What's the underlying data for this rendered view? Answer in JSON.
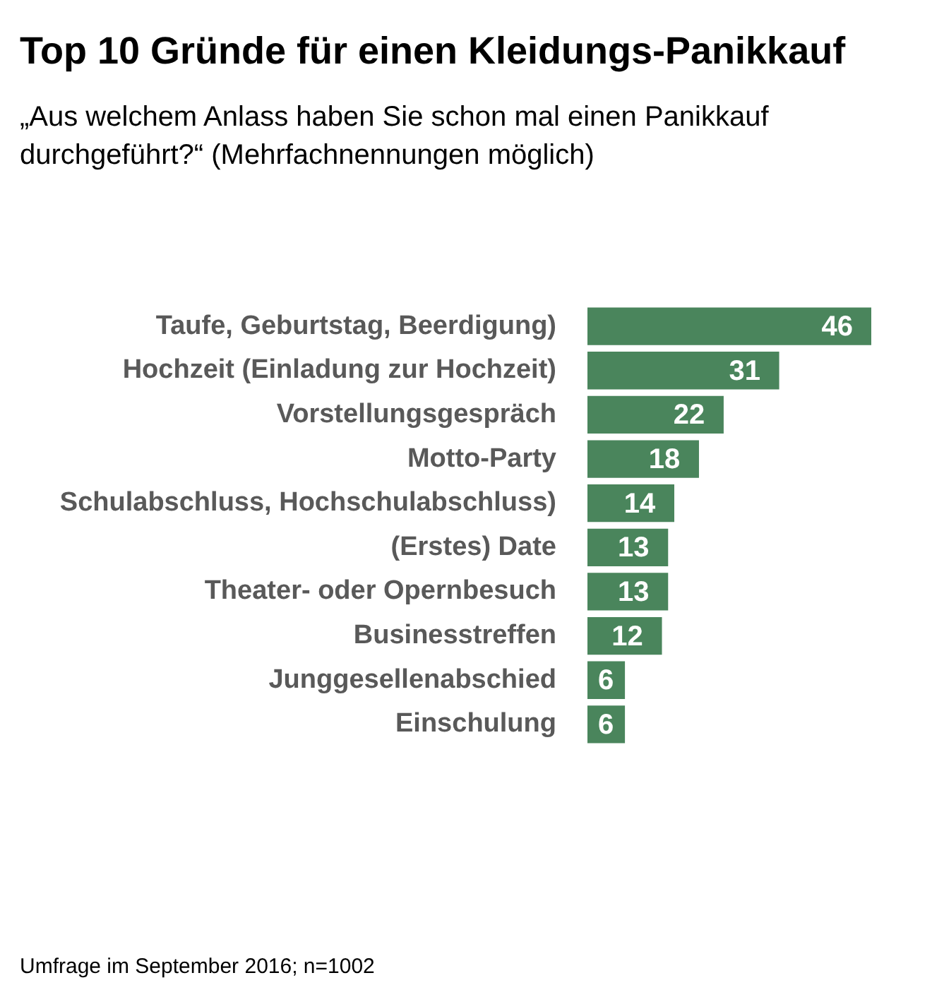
{
  "chart_data": {
    "type": "bar",
    "orientation": "horizontal",
    "title": "Top 10 Gründe für einen Kleidungs-Panikkauf",
    "subtitle": "„Aus welchem Anlass haben Sie schon mal einen Panikkauf durchgeführt?“ (Mehrfachnennungen möglich)",
    "categories": [
      "Taufe, Geburtstag, Beerdigung)",
      "Hochzeit (Einladung zur Hochzeit)",
      "Vorstellungsgespräch",
      "Motto-Party",
      "Schulabschluss, Hochschulabschluss)",
      "(Erstes) Date",
      "Theater- oder Opernbesuch",
      "Businesstreffen",
      "Junggesellenabschied",
      "Einschulung"
    ],
    "values": [
      46,
      31,
      22,
      18,
      14,
      13,
      13,
      12,
      6,
      6
    ],
    "color": "#4a855c",
    "data_labels": true,
    "tick_labels": "y",
    "annotations": [
      "Umfrage im September 2016; n=1002"
    ]
  }
}
